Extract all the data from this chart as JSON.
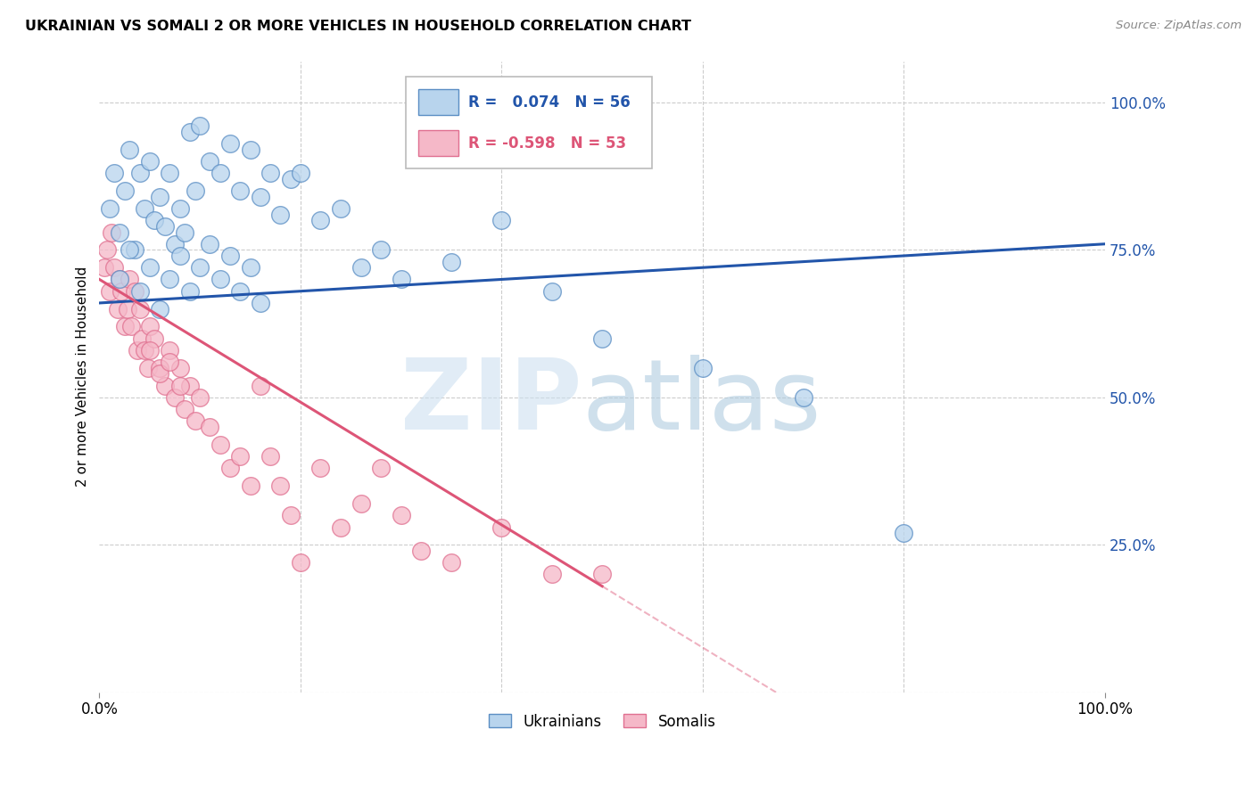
{
  "title": "UKRAINIAN VS SOMALI 2 OR MORE VEHICLES IN HOUSEHOLD CORRELATION CHART",
  "source": "Source: ZipAtlas.com",
  "ylabel": "2 or more Vehicles in Household",
  "legend_r_ukrainian": "0.074",
  "legend_n_ukrainian": "56",
  "legend_r_somali": "-0.598",
  "legend_n_somali": "53",
  "legend_label_ukrainian": "Ukrainians",
  "legend_label_somali": "Somalis",
  "ukrainian_fill": "#b8d4ed",
  "somali_fill": "#f5b8c8",
  "ukrainian_edge": "#5b8ec4",
  "somali_edge": "#e07090",
  "line_uk_color": "#2255aa",
  "line_so_color": "#dd5577",
  "watermark_zip_color": "#cde0f0",
  "watermark_atlas_color": "#b0cce0",
  "uk_x": [
    1.0,
    1.5,
    2.0,
    2.5,
    3.0,
    3.5,
    4.0,
    4.5,
    5.0,
    5.5,
    6.0,
    6.5,
    7.0,
    7.5,
    8.0,
    8.5,
    9.0,
    9.5,
    10.0,
    11.0,
    12.0,
    13.0,
    14.0,
    15.0,
    16.0,
    17.0,
    18.0,
    19.0,
    20.0,
    22.0,
    24.0,
    26.0,
    28.0,
    30.0,
    35.0,
    40.0,
    45.0,
    50.0,
    60.0,
    70.0,
    2.0,
    3.0,
    4.0,
    5.0,
    6.0,
    7.0,
    8.0,
    9.0,
    10.0,
    11.0,
    12.0,
    13.0,
    14.0,
    15.0,
    16.0,
    80.0
  ],
  "uk_y": [
    82,
    88,
    78,
    85,
    92,
    75,
    88,
    82,
    90,
    80,
    84,
    79,
    88,
    76,
    82,
    78,
    95,
    85,
    96,
    90,
    88,
    93,
    85,
    92,
    84,
    88,
    81,
    87,
    88,
    80,
    82,
    72,
    75,
    70,
    73,
    80,
    68,
    60,
    55,
    50,
    70,
    75,
    68,
    72,
    65,
    70,
    74,
    68,
    72,
    76,
    70,
    74,
    68,
    72,
    66,
    27
  ],
  "so_x": [
    0.5,
    0.8,
    1.0,
    1.2,
    1.5,
    1.8,
    2.0,
    2.2,
    2.5,
    2.8,
    3.0,
    3.2,
    3.5,
    3.8,
    4.0,
    4.2,
    4.5,
    4.8,
    5.0,
    5.5,
    6.0,
    6.5,
    7.0,
    7.5,
    8.0,
    8.5,
    9.0,
    9.5,
    10.0,
    11.0,
    12.0,
    13.0,
    14.0,
    15.0,
    16.0,
    17.0,
    18.0,
    19.0,
    20.0,
    22.0,
    24.0,
    26.0,
    28.0,
    30.0,
    32.0,
    35.0,
    40.0,
    45.0,
    50.0,
    5.0,
    6.0,
    7.0,
    8.0
  ],
  "so_y": [
    72,
    75,
    68,
    78,
    72,
    65,
    70,
    68,
    62,
    65,
    70,
    62,
    68,
    58,
    65,
    60,
    58,
    55,
    62,
    60,
    55,
    52,
    58,
    50,
    55,
    48,
    52,
    46,
    50,
    45,
    42,
    38,
    40,
    35,
    52,
    40,
    35,
    30,
    22,
    38,
    28,
    32,
    38,
    30,
    24,
    22,
    28,
    20,
    20,
    58,
    54,
    56,
    52
  ],
  "xlim": [
    0,
    1.0
  ],
  "ylim": [
    0,
    1.07
  ],
  "yticks": [
    0.0,
    0.25,
    0.5,
    0.75,
    1.0
  ],
  "ytick_labels": [
    "",
    "25.0%",
    "50.0%",
    "75.0%",
    "100.0%"
  ],
  "xtick_labels": [
    "0.0%",
    "100.0%"
  ],
  "grid_color": "#cccccc"
}
